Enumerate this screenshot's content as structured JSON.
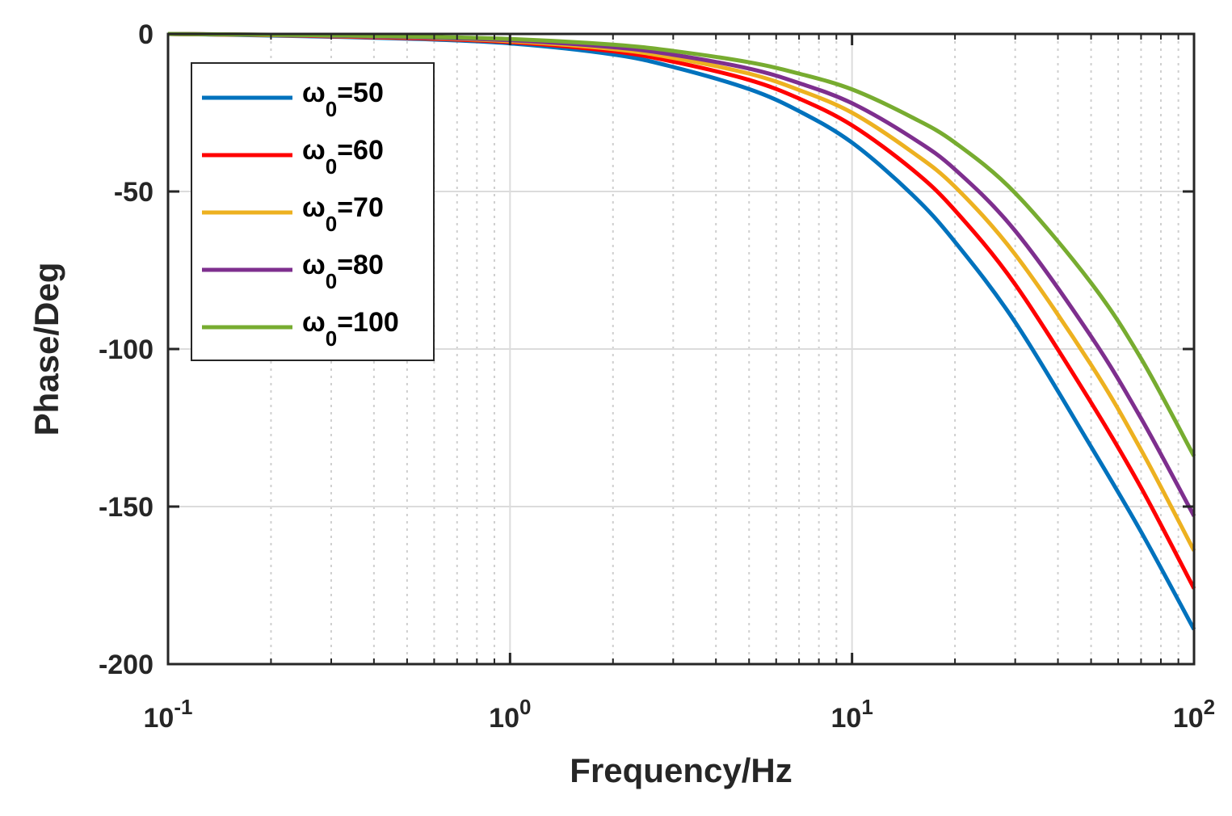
{
  "chart_data": {
    "type": "line",
    "xlabel": "Frequency/Hz",
    "ylabel": "Phase/Deg",
    "xscale": "log",
    "xlim": [
      0.1,
      100
    ],
    "ylim": [
      -200,
      0
    ],
    "grid": true,
    "legend_position": "top-left",
    "x_ticks": [
      {
        "value": 0.1,
        "base": "10",
        "exp": "-1"
      },
      {
        "value": 1,
        "base": "10",
        "exp": "0"
      },
      {
        "value": 10,
        "base": "10",
        "exp": "1"
      },
      {
        "value": 100,
        "base": "10",
        "exp": "2"
      }
    ],
    "y_ticks": [
      {
        "value": 0,
        "label": "0"
      },
      {
        "value": -50,
        "label": "-50"
      },
      {
        "value": -100,
        "label": "-100"
      },
      {
        "value": -150,
        "label": "-150"
      },
      {
        "value": -200,
        "label": "-200"
      }
    ],
    "x": [
      0.1,
      0.2,
      0.5,
      1,
      2,
      3,
      5,
      7,
      10,
      15,
      20,
      30,
      50,
      70,
      100
    ],
    "series": [
      {
        "name": "ω0=50",
        "symbol": "ω",
        "sub": "0",
        "suffix": "=50",
        "color": "#0072BD",
        "values": [
          0,
          -0.5,
          -1.5,
          -3,
          -6.5,
          -10.5,
          -17.5,
          -24.5,
          -34.5,
          -51,
          -66,
          -91.5,
          -131,
          -158,
          -189
        ]
      },
      {
        "name": "ω0=60",
        "symbol": "ω",
        "sub": "0",
        "suffix": "=60",
        "color": "#FF0000",
        "values": [
          0,
          -0.4,
          -1.3,
          -2.6,
          -5.5,
          -8.8,
          -14.6,
          -20.5,
          -29,
          -43,
          -56,
          -79.5,
          -117,
          -144,
          -176
        ]
      },
      {
        "name": "ω0=70",
        "symbol": "ω",
        "sub": "0",
        "suffix": "=70",
        "color": "#EDB120",
        "values": [
          0,
          -0.35,
          -1.1,
          -2.3,
          -4.8,
          -7.6,
          -12.6,
          -17.8,
          -25,
          -37.5,
          -48.5,
          -70,
          -105,
          -132,
          -164
        ]
      },
      {
        "name": "ω0=80",
        "symbol": "ω",
        "sub": "0",
        "suffix": "=80",
        "color": "#7E2F8E",
        "values": [
          0,
          -0.3,
          -1,
          -2,
          -4.2,
          -6.6,
          -11,
          -15.6,
          -22,
          -33,
          -43,
          -62.5,
          -96,
          -122,
          -153
        ]
      },
      {
        "name": "ω0=100",
        "symbol": "ω",
        "sub": "0",
        "suffix": "=100",
        "color": "#77AC30",
        "values": [
          0,
          -0.25,
          -0.8,
          -1.6,
          -3.4,
          -5.4,
          -9,
          -12.6,
          -17.6,
          -26.5,
          -34.5,
          -50.5,
          -79,
          -103,
          -134
        ]
      }
    ]
  }
}
